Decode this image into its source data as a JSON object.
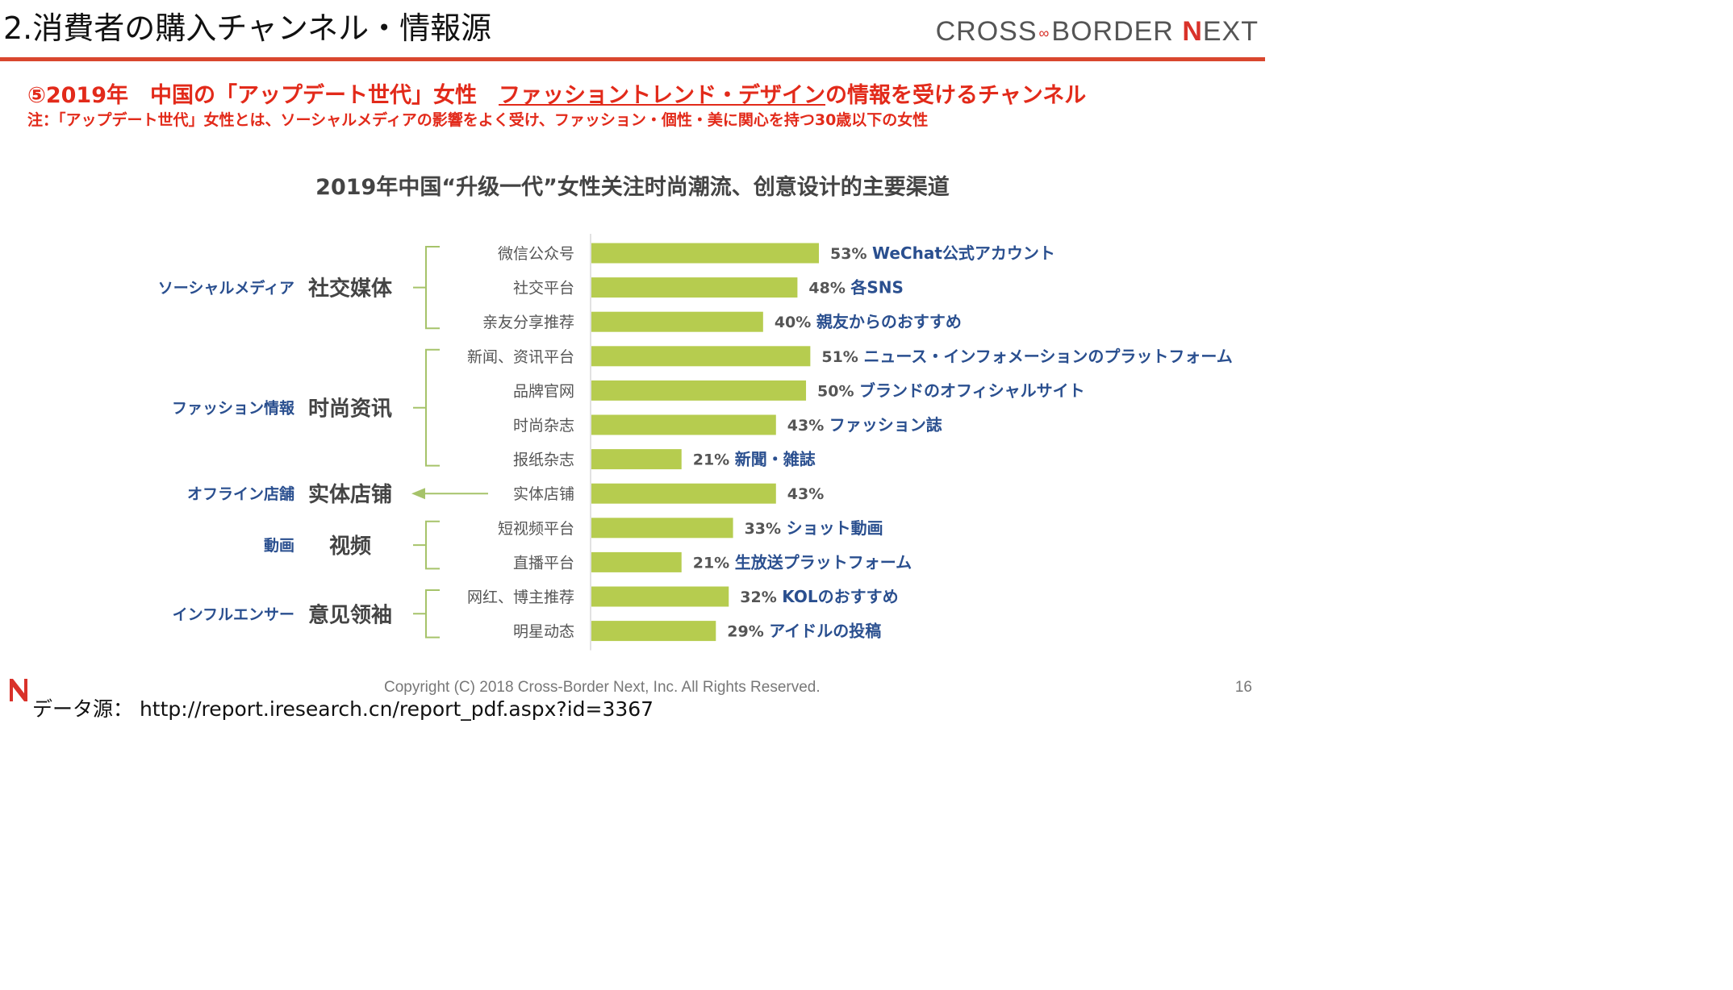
{
  "header": {
    "title": "2.消費者の購入チャンネル・情報源",
    "logo_part1": "CROSS",
    "logo_mark": "∞",
    "logo_part2": "BORDER",
    "logo_n": "N",
    "logo_part3": "EXT"
  },
  "subtitle": {
    "prefix": "⑤2019年　中国の「アップデート世代」女性　",
    "underlined": "ファッショントレンド・デザイン",
    "suffix": "の情報を受けるチャンネル"
  },
  "note": "注：「アップデート世代」女性とは、ソーシャルメディアの影響をよく受け、ファッション・個性・美に関心を持つ30歳以下の女性",
  "colors": {
    "accent": "#e22a1a",
    "rule": "#d9472e",
    "bar": "#b6cc4f",
    "bracket": "#a6c36a",
    "annotation": "#2a4f8f"
  },
  "chart_data": {
    "type": "bar",
    "orientation": "horizontal",
    "title": "2019年中国“升级一代”女性关注时尚潮流、创意设计的主要渠道",
    "categories": [
      "微信公众号",
      "社交平台",
      "亲友分享推荐",
      "新闻、资讯平台",
      "品牌官网",
      "时尚杂志",
      "报纸杂志",
      "实体店铺",
      "短视频平台",
      "直播平台",
      "网红、博主推荐",
      "明星动态"
    ],
    "values": [
      53,
      48,
      40,
      51,
      50,
      43,
      21,
      43,
      33,
      21,
      32,
      29
    ],
    "value_labels": [
      "53%",
      "48%",
      "40%",
      "51%",
      "50%",
      "43%",
      "21%",
      "43%",
      "33%",
      "21%",
      "32%",
      "29%"
    ],
    "japanese_labels": [
      "WeChat公式アカウント",
      "各SNS",
      "親友からのおすすめ",
      "ニュース・インフォメーションのプラットフォーム",
      "ブランドのオフィシャルサイト",
      "ファッション誌",
      "新聞・雑誌",
      "",
      "ショット動画",
      "生放送プラットフォーム",
      "KOLのおすすめ",
      "アイドルの投稿"
    ],
    "groups": [
      {
        "name_cn": "社交媒体",
        "name_jp": "ソーシャルメディア",
        "start": 0,
        "end": 2
      },
      {
        "name_cn": "时尚资讯",
        "name_jp": "ファッション情報",
        "start": 3,
        "end": 6
      },
      {
        "name_cn": "实体店铺",
        "name_jp": "オフライン店舗",
        "start": 7,
        "end": 7
      },
      {
        "name_cn": "视频",
        "name_jp": "動画",
        "start": 8,
        "end": 9
      },
      {
        "name_cn": "意见领袖",
        "name_jp": "インフルエンサー",
        "start": 10,
        "end": 11
      }
    ],
    "xlim": [
      0,
      100
    ],
    "grid": false,
    "legend": "none"
  },
  "footer": {
    "copyright": "Copyright (C) 2018 Cross-Border Next, Inc. All Rights Reserved.",
    "page": "16",
    "source": "データ源： http://report.iresearch.cn/report_pdf.aspx?id=3367"
  }
}
